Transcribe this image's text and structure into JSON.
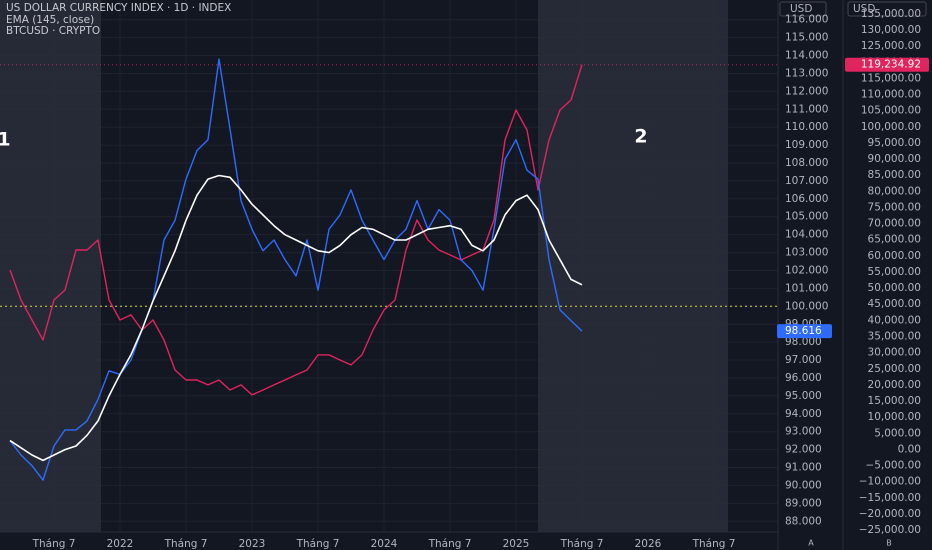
{
  "chart_data": {
    "type": "line",
    "categories": [
      null,
      null,
      null,
      null,
      "Tháng 7",
      null,
      null,
      null,
      null,
      null,
      "2022",
      null,
      null,
      null,
      null,
      null,
      "Tháng 7",
      null,
      null,
      null,
      null,
      null,
      "2023",
      null,
      null,
      null,
      null,
      null,
      "Tháng 7",
      null,
      null,
      null,
      null,
      null,
      "2024",
      null,
      null,
      null,
      null,
      null,
      "Tháng 7",
      null,
      null,
      null,
      null,
      null,
      "2025",
      null,
      null,
      null,
      null,
      null,
      "Tháng 7",
      null,
      null,
      null,
      null,
      null,
      "2026",
      null,
      null,
      null,
      null,
      null,
      "Tháng 7",
      null,
      null,
      null,
      null,
      null
    ],
    "series": [
      {
        "name": "US DOLLAR CURRENCY INDEX · 1D · INDEX",
        "color": "#2f6bff",
        "axis": "y",
        "values": [
          92.5,
          91.7,
          91.1,
          90.3,
          92.2,
          93.1,
          93.1,
          93.6,
          94.8,
          96.4,
          96.2,
          97.0,
          98.7,
          100.3,
          103.7,
          104.8,
          107.1,
          108.7,
          109.3,
          113.8,
          109.9,
          105.9,
          104.3,
          103.1,
          103.7,
          102.6,
          101.7,
          103.7,
          100.9,
          104.3,
          105.1,
          106.5,
          104.8,
          103.7,
          102.6,
          103.7,
          104.3,
          105.9,
          104.3,
          105.4,
          104.8,
          102.6,
          102.0,
          100.9,
          104.3,
          108.2,
          109.3,
          107.6,
          107.1,
          102.6,
          99.8,
          99.2,
          98.616,
          null,
          null,
          null,
          null,
          null,
          null,
          null,
          null,
          null,
          null,
          null,
          null,
          null,
          null,
          null,
          null,
          null
        ]
      },
      {
        "name": "EMA (145, close)",
        "color": "#ffffff",
        "axis": "y",
        "values": [
          92.5,
          92.1,
          91.7,
          91.4,
          91.7,
          92.0,
          92.2,
          92.8,
          93.6,
          95.0,
          96.2,
          97.3,
          98.7,
          100.3,
          101.7,
          103.1,
          104.8,
          106.2,
          107.1,
          107.3,
          107.2,
          106.5,
          105.7,
          105.1,
          104.5,
          104.0,
          103.7,
          103.4,
          103.1,
          103.0,
          103.4,
          104.0,
          104.4,
          104.3,
          104.0,
          103.7,
          103.7,
          104.0,
          104.3,
          104.4,
          104.5,
          104.3,
          103.4,
          103.1,
          103.7,
          105.1,
          105.9,
          106.2,
          105.4,
          103.7,
          102.6,
          101.5,
          101.2,
          null,
          null,
          null,
          null,
          null,
          null,
          null,
          null,
          null,
          null,
          null,
          null,
          null,
          null,
          null,
          null,
          null
        ]
      },
      {
        "name": "BTCUSD · CRYPTO",
        "color": "#e0245e",
        "axis": "y2",
        "values": [
          55600,
          46300,
          40100,
          33900,
          46300,
          49400,
          61800,
          61800,
          64900,
          46300,
          40100,
          41700,
          37000,
          40100,
          33900,
          24600,
          21500,
          21500,
          20000,
          21500,
          18400,
          20000,
          16900,
          18400,
          20000,
          21500,
          23100,
          24600,
          29300,
          29300,
          27700,
          26200,
          29300,
          37000,
          43200,
          46300,
          61800,
          71100,
          64900,
          61800,
          60300,
          58700,
          60300,
          61800,
          71100,
          95900,
          105200,
          99000,
          80400,
          95900,
          105200,
          108300,
          119234.92,
          null,
          null,
          null,
          null,
          null,
          null,
          null,
          null,
          null,
          null,
          null,
          null,
          null,
          null,
          null,
          null,
          null
        ],
        "value_labels": [
          null,
          null,
          null,
          null,
          null,
          null,
          null,
          null,
          null,
          null,
          null,
          null,
          null,
          null,
          null,
          null,
          null,
          null,
          null,
          null,
          null,
          null,
          null,
          null,
          null,
          null,
          null,
          null,
          null,
          null,
          null,
          null,
          null,
          null,
          null,
          null,
          null,
          null,
          null,
          null,
          null,
          null,
          null,
          null,
          null,
          null,
          null,
          null,
          null,
          null,
          null,
          null,
          "119,234.92",
          null,
          null,
          null,
          null,
          null,
          null,
          null,
          null,
          null,
          null,
          null,
          null,
          null,
          null,
          null,
          null,
          null
        ]
      }
    ],
    "ylim": [
      87.4,
      117.1
    ],
    "yticks": [
      {
        "value": 88,
        "label": "88.000"
      },
      {
        "value": 89,
        "label": "89.000"
      },
      {
        "value": 90,
        "label": "90.000"
      },
      {
        "value": 91,
        "label": "91.000"
      },
      {
        "value": 92,
        "label": "92.000"
      },
      {
        "value": 93,
        "label": "93.000"
      },
      {
        "value": 94,
        "label": "94.000"
      },
      {
        "value": 95,
        "label": "95.000"
      },
      {
        "value": 96,
        "label": "96.000"
      },
      {
        "value": 97,
        "label": "97.000"
      },
      {
        "value": 98,
        "label": "98.000"
      },
      {
        "value": 99,
        "label": "99.000"
      },
      {
        "value": 100,
        "label": "100.000"
      },
      {
        "value": 101,
        "label": "101.000"
      },
      {
        "value": 102,
        "label": "102.000"
      },
      {
        "value": 103,
        "label": "103.000"
      },
      {
        "value": 104,
        "label": "104.000"
      },
      {
        "value": 105,
        "label": "105.000"
      },
      {
        "value": 106,
        "label": "106.000"
      },
      {
        "value": 107,
        "label": "107.000"
      },
      {
        "value": 108,
        "label": "108.000"
      },
      {
        "value": 109,
        "label": "109.000"
      },
      {
        "value": 110,
        "label": "110.000"
      },
      {
        "value": 111,
        "label": "111.000"
      },
      {
        "value": 112,
        "label": "112.000"
      },
      {
        "value": 113,
        "label": "113.000"
      },
      {
        "value": 114,
        "label": "114.000"
      },
      {
        "value": 115,
        "label": "115.000"
      },
      {
        "value": 116,
        "label": "116.000"
      }
    ],
    "y2lim": [
      -25600,
      139300
    ],
    "y2ticks": [
      {
        "value": -25000,
        "label": "−25,000.00"
      },
      {
        "value": -20000,
        "label": "−20,000.00"
      },
      {
        "value": -15000,
        "label": "−15,000.00"
      },
      {
        "value": -10000,
        "label": "−10,000.00"
      },
      {
        "value": -5000,
        "label": "−5,000.00"
      },
      {
        "value": 0,
        "label": "0.00"
      },
      {
        "value": 5000,
        "label": "5,000.00"
      },
      {
        "value": 10000,
        "label": "10,000.00"
      },
      {
        "value": 15000,
        "label": "15,000.00"
      },
      {
        "value": 20000,
        "label": "20,000.00"
      },
      {
        "value": 25000,
        "label": "25,000.00"
      },
      {
        "value": 30000,
        "label": "30,000.00"
      },
      {
        "value": 35000,
        "label": "35,000.00"
      },
      {
        "value": 40000,
        "label": "40,000.00"
      },
      {
        "value": 45000,
        "label": "45,000.00"
      },
      {
        "value": 50000,
        "label": "50,000.00"
      },
      {
        "value": 55000,
        "label": "55,000.00"
      },
      {
        "value": 60000,
        "label": "60,000.00"
      },
      {
        "value": 65000,
        "label": "65,000.00"
      },
      {
        "value": 70000,
        "label": "70,000.00"
      },
      {
        "value": 75000,
        "label": "75,000.00"
      },
      {
        "value": 80000,
        "label": "80,000.00"
      },
      {
        "value": 85000,
        "label": "85,000.00"
      },
      {
        "value": 90000,
        "label": "90,000.00"
      },
      {
        "value": 95000,
        "label": "95,000.00"
      },
      {
        "value": 100000,
        "label": "100,000.00"
      },
      {
        "value": 105000,
        "label": "105,000.00"
      },
      {
        "value": 110000,
        "label": "110,000.00"
      },
      {
        "value": 115000,
        "label": "115,000.00"
      },
      {
        "value": 120000,
        "label": "120,000.00"
      },
      {
        "value": 125000,
        "label": "125,000.00"
      },
      {
        "value": 130000,
        "label": "130,000.00"
      },
      {
        "value": 135000,
        "label": "135,000.00"
      }
    ],
    "grid": true,
    "reference_line": {
      "value": 100,
      "color": "#d8d43a"
    },
    "axis_headers": [
      "USD",
      "USD"
    ],
    "annotations": [
      "1",
      "2"
    ],
    "scale_buttons": [
      "A",
      "B"
    ]
  }
}
